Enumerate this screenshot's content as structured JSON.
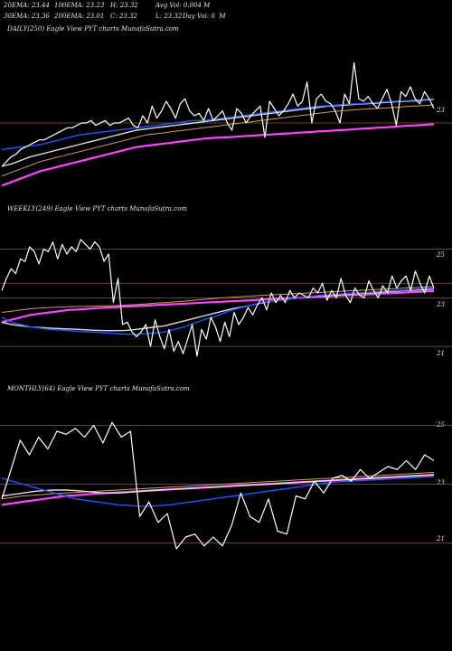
{
  "header": {
    "ema20": "20EMA: 23.44",
    "ema100": "100EMA: 23.23",
    "high": "H: 23.32",
    "avgvol": "Avg Vol: 0.004 M",
    "ema30": "30EMA: 23.36",
    "ema200": "200EMA: 23.01",
    "close": "C: 23.32",
    "low": "L: 23.32",
    "dayvol": "Day Vol: 0  M"
  },
  "colors": {
    "price": "#ffffff",
    "ema_fast": "#2255ff",
    "ema_mid": "#dddddd",
    "ema_slow": "#d2a050",
    "ema_long": "#ff44ff",
    "level": "#8a5a28"
  },
  "chart_data": [
    {
      "type": "line",
      "title": "DAILY(250) Eagle  View  PYT charts MunafaSutra.com",
      "y_ticks": [
        "23"
      ],
      "levels": [
        23
      ],
      "ylim": [
        20.6,
        26.6
      ],
      "series": [
        {
          "role": "price",
          "color": "#ffffff",
          "values": [
            21.2,
            21.4,
            21.6,
            21.7,
            21.9,
            22.0,
            22.1,
            22.2,
            22.3,
            22.3,
            22.4,
            22.5,
            22.6,
            22.7,
            22.8,
            22.8,
            22.9,
            23.0,
            23.0,
            23.1,
            22.9,
            23.0,
            23.1,
            22.9,
            23.0,
            23.0,
            23.1,
            23.2,
            22.9,
            22.8,
            23.3,
            23.0,
            23.7,
            23.2,
            23.5,
            23.9,
            23.6,
            23.2,
            23.8,
            24.0,
            23.5,
            23.3,
            23.4,
            23.1,
            23.6,
            23.1,
            23.3,
            23.5,
            23.0,
            22.7,
            23.6,
            23.4,
            23.0,
            23.3,
            23.5,
            23.7,
            22.4,
            23.9,
            23.6,
            23.3,
            23.5,
            23.8,
            24.2,
            23.7,
            23.9,
            24.7,
            23.0,
            24.0,
            24.2,
            23.9,
            23.8,
            23.5,
            23.0,
            24.2,
            23.8,
            25.5,
            24.0,
            23.9,
            24.1,
            23.8,
            23.6,
            24.0,
            24.4,
            23.8,
            22.9,
            24.3,
            24.1,
            24.5,
            24.0,
            23.8,
            24.3,
            24.0,
            23.6
          ]
        },
        {
          "role": "ema_fast",
          "color": "#2255ff",
          "values": [
            21.9,
            21.95,
            22.0,
            22.05,
            22.1,
            22.2,
            22.3,
            22.4,
            22.5,
            22.55,
            22.6,
            22.65,
            22.7,
            22.75,
            22.8,
            22.85,
            22.9,
            22.95,
            23.0,
            23.05,
            23.1,
            23.1,
            23.15,
            23.2,
            23.25,
            23.3,
            23.35,
            23.4,
            23.45,
            23.5,
            23.55,
            23.6,
            23.65,
            23.7,
            23.72,
            23.75,
            23.78,
            23.8,
            23.82,
            23.85,
            23.88,
            23.9,
            23.92,
            23.95,
            23.98,
            24.0
          ]
        },
        {
          "role": "ema_mid",
          "color": "#dddddd",
          "values": [
            21.2,
            21.3,
            21.45,
            21.6,
            21.7,
            21.8,
            21.9,
            22.0,
            22.1,
            22.2,
            22.3,
            22.4,
            22.5,
            22.6,
            22.7,
            22.75,
            22.8,
            22.85,
            22.9,
            22.95,
            23.0,
            23.05,
            23.1,
            23.15,
            23.2,
            23.25,
            23.3,
            23.35,
            23.4,
            23.45,
            23.5,
            23.55,
            23.6,
            23.65,
            23.7,
            23.72,
            23.75,
            23.78,
            23.8,
            23.82,
            23.85,
            23.88,
            23.9,
            23.92,
            23.95,
            23.98
          ]
        },
        {
          "role": "ema_slow",
          "color": "#d2a050",
          "values": [
            20.8,
            20.95,
            21.1,
            21.25,
            21.4,
            21.5,
            21.6,
            21.7,
            21.8,
            21.9,
            22.0,
            22.1,
            22.2,
            22.3,
            22.4,
            22.5,
            22.55,
            22.6,
            22.65,
            22.7,
            22.75,
            22.8,
            22.85,
            22.9,
            22.95,
            23.0,
            23.05,
            23.1,
            23.15,
            23.2,
            23.25,
            23.3,
            23.35,
            23.4,
            23.45,
            23.5,
            23.52,
            23.55,
            23.58,
            23.6,
            23.62,
            23.65,
            23.68,
            23.7,
            23.72,
            23.75
          ]
        },
        {
          "role": "ema_long",
          "color": "#ff44ff",
          "values": [
            20.4,
            20.55,
            20.7,
            20.85,
            21.0,
            21.1,
            21.2,
            21.3,
            21.4,
            21.5,
            21.6,
            21.7,
            21.8,
            21.9,
            22.0,
            22.05,
            22.1,
            22.15,
            22.2,
            22.25,
            22.3,
            22.35,
            22.38,
            22.4,
            22.42,
            22.45,
            22.47,
            22.5,
            22.52,
            22.55,
            22.57,
            22.6,
            22.62,
            22.65,
            22.67,
            22.7,
            22.72,
            22.75,
            22.77,
            22.8,
            22.82,
            22.85,
            22.88,
            22.9,
            22.92,
            22.95
          ]
        }
      ]
    },
    {
      "type": "line",
      "title": "WEEKLY(249) Eagle  View  PYT charts MunafaSutra.com",
      "y_ticks": [
        "25",
        "23",
        "21"
      ],
      "levels": [
        25,
        23.6,
        23,
        21
      ],
      "ylim": [
        20.0,
        26.4
      ],
      "series": [
        {
          "role": "price",
          "color": "#ffffff",
          "values": [
            23.3,
            23.8,
            24.2,
            24.0,
            24.6,
            24.5,
            25.1,
            24.9,
            24.4,
            25.0,
            24.9,
            25.3,
            24.6,
            25.2,
            24.8,
            25.1,
            24.9,
            25.4,
            25.2,
            25.0,
            25.3,
            25.1,
            24.5,
            24.8,
            22.8,
            23.8,
            21.9,
            22.0,
            21.6,
            21.4,
            21.6,
            21.9,
            21.0,
            22.1,
            21.4,
            20.9,
            21.7,
            20.8,
            21.2,
            20.7,
            21.3,
            21.9,
            20.6,
            21.7,
            21.3,
            22.2,
            21.8,
            21.2,
            22.0,
            21.4,
            22.4,
            21.9,
            22.2,
            22.6,
            22.3,
            22.7,
            23.0,
            22.5,
            23.2,
            22.8,
            23.1,
            22.8,
            23.3,
            23.0,
            23.2,
            23.1,
            23.0,
            23.4,
            23.2,
            23.6,
            22.9,
            23.3,
            23.0,
            23.8,
            23.1,
            22.8,
            23.4,
            23.1,
            23.0,
            23.7,
            23.3,
            23.0,
            23.5,
            23.2,
            23.9,
            23.4,
            23.7,
            23.9,
            23.3,
            24.1,
            23.6,
            23.2,
            23.9,
            23.4
          ]
        },
        {
          "role": "ema_fast",
          "color": "#2255ff",
          "values": [
            22.2,
            22.0,
            21.9,
            21.8,
            21.75,
            21.7,
            21.68,
            21.65,
            21.62,
            21.6,
            21.58,
            21.55,
            21.53,
            21.5,
            21.5,
            21.52,
            21.55,
            21.6,
            21.7,
            21.8,
            21.95,
            22.1,
            22.2,
            22.35,
            22.5,
            22.6,
            22.7,
            22.8,
            22.85,
            22.9,
            22.95,
            23.0,
            23.05,
            23.1,
            23.12,
            23.15,
            23.18,
            23.2,
            23.22,
            23.25,
            23.28,
            23.3,
            23.32,
            23.35,
            23.38,
            23.4
          ]
        },
        {
          "role": "ema_mid",
          "color": "#dddddd",
          "values": [
            22.0,
            21.9,
            21.85,
            21.8,
            21.78,
            21.75,
            21.73,
            21.72,
            21.7,
            21.68,
            21.66,
            21.65,
            21.65,
            21.66,
            21.7,
            21.75,
            21.8,
            21.85,
            21.95,
            22.05,
            22.15,
            22.25,
            22.35,
            22.45,
            22.55,
            22.62,
            22.7,
            22.78,
            22.85,
            22.9,
            22.95,
            23.0,
            23.05,
            23.08,
            23.1,
            23.13,
            23.16,
            23.18,
            23.2,
            23.22,
            23.25,
            23.27,
            23.3,
            23.32,
            23.34,
            23.36
          ]
        },
        {
          "role": "ema_slow",
          "color": "#d2a050",
          "values": [
            22.4,
            22.45,
            22.5,
            22.55,
            22.58,
            22.6,
            22.62,
            22.63,
            22.64,
            22.65,
            22.66,
            22.67,
            22.68,
            22.7,
            22.72,
            22.75,
            22.78,
            22.8,
            22.83,
            22.86,
            22.9,
            22.93,
            22.96,
            23.0,
            23.02,
            23.05,
            23.07,
            23.1,
            23.12,
            23.14,
            23.16,
            23.18,
            23.2,
            23.22,
            23.24,
            23.26,
            23.28,
            23.3,
            23.32,
            23.34,
            23.36,
            23.38,
            23.4,
            23.42,
            23.44,
            23.46
          ]
        },
        {
          "role": "ema_long",
          "color": "#ff44ff",
          "values": [
            22.0,
            22.1,
            22.2,
            22.3,
            22.35,
            22.4,
            22.45,
            22.5,
            22.52,
            22.55,
            22.58,
            22.6,
            22.62,
            22.64,
            22.66,
            22.68,
            22.7,
            22.72,
            22.74,
            22.76,
            22.78,
            22.8,
            22.82,
            22.84,
            22.86,
            22.88,
            22.9,
            22.92,
            22.94,
            22.96,
            22.98,
            23.0,
            23.02,
            23.04,
            23.06,
            23.08,
            23.1,
            23.12,
            23.14,
            23.16,
            23.18,
            23.2,
            23.22,
            23.24,
            23.26,
            23.28
          ]
        }
      ]
    },
    {
      "type": "line",
      "title": "MONTHLY(64) Eagle  View  PYT charts MunafaSutra.com",
      "y_ticks": [
        "25",
        "23",
        "21"
      ],
      "levels": [
        25,
        23,
        21
      ],
      "ylim": [
        20.4,
        26.0
      ],
      "series": [
        {
          "role": "price",
          "color": "#ffffff",
          "values": [
            22.5,
            23.5,
            24.5,
            24.0,
            24.6,
            24.2,
            24.8,
            24.7,
            24.9,
            24.6,
            25.0,
            24.4,
            25.1,
            24.6,
            24.8,
            21.9,
            22.4,
            21.7,
            22.0,
            20.8,
            21.2,
            21.3,
            20.9,
            21.2,
            20.9,
            21.6,
            22.7,
            21.9,
            21.7,
            22.5,
            21.4,
            21.3,
            22.6,
            22.5,
            23.1,
            22.7,
            23.2,
            23.3,
            23.1,
            23.5,
            23.2,
            23.4,
            23.6,
            23.5,
            23.8,
            23.5,
            24.0,
            23.8
          ]
        },
        {
          "role": "ema_fast",
          "color": "#2255ff",
          "values": [
            23.2,
            23.1,
            23.0,
            22.9,
            22.8,
            22.7,
            22.6,
            22.5,
            22.45,
            22.4,
            22.35,
            22.3,
            22.28,
            22.25,
            22.25,
            22.27,
            22.3,
            22.35,
            22.4,
            22.45,
            22.5,
            22.55,
            22.6,
            22.65,
            22.7,
            22.75,
            22.8,
            22.85,
            22.9,
            22.95,
            23.0,
            23.05,
            23.08,
            23.1,
            23.12,
            23.14,
            23.16,
            23.18,
            23.2,
            23.22,
            23.24,
            23.26
          ]
        },
        {
          "role": "ema_mid",
          "color": "#dddddd",
          "values": [
            22.6,
            22.65,
            22.7,
            22.75,
            22.78,
            22.8,
            22.8,
            22.78,
            22.75,
            22.72,
            22.7,
            22.7,
            22.72,
            22.75,
            22.78,
            22.8,
            22.82,
            22.84,
            22.86,
            22.88,
            22.9,
            22.92,
            22.94,
            22.96,
            22.98,
            23.0,
            23.02,
            23.04,
            23.06,
            23.08,
            23.1,
            23.12,
            23.14,
            23.16,
            23.18,
            23.2,
            23.22,
            23.24,
            23.26,
            23.28,
            23.3,
            23.32
          ]
        },
        {
          "role": "ema_slow",
          "color": "#d2a050",
          "values": [
            22.5,
            22.55,
            22.6,
            22.62,
            22.65,
            22.68,
            22.7,
            22.72,
            22.74,
            22.76,
            22.78,
            22.8,
            22.82,
            22.84,
            22.86,
            22.88,
            22.9,
            22.92,
            22.94,
            22.96,
            22.98,
            23.0,
            23.02,
            23.04,
            23.06,
            23.08,
            23.1,
            23.12,
            23.14,
            23.16,
            23.18,
            23.2,
            23.22,
            23.24,
            23.26,
            23.28,
            23.3,
            23.32,
            23.34,
            23.36,
            23.38,
            23.4
          ]
        },
        {
          "role": "ema_long",
          "color": "#ff44ff",
          "values": [
            22.3,
            22.35,
            22.4,
            22.45,
            22.5,
            22.55,
            22.6,
            22.62,
            22.65,
            22.68,
            22.7,
            22.72,
            22.74,
            22.76,
            22.78,
            22.8,
            22.82,
            22.84,
            22.86,
            22.88,
            22.9,
            22.92,
            22.94,
            22.96,
            22.98,
            23.0,
            23.02,
            23.04,
            23.06,
            23.08,
            23.1,
            23.12,
            23.14,
            23.16,
            23.18,
            23.2,
            23.22,
            23.24,
            23.26,
            23.28,
            23.3,
            23.32
          ]
        }
      ]
    }
  ]
}
